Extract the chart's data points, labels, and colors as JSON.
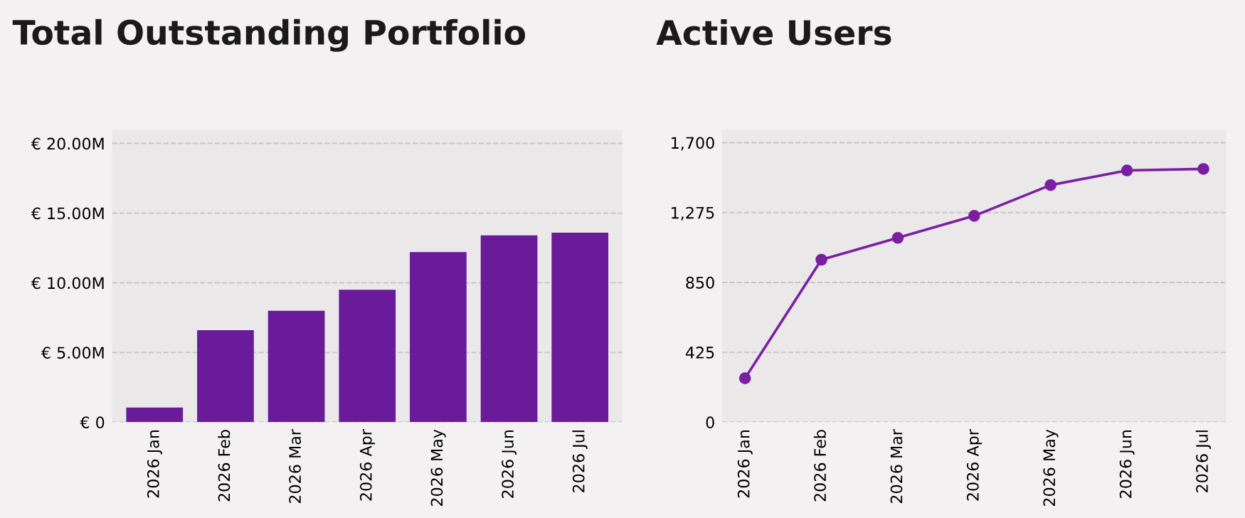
{
  "chart_data": [
    {
      "type": "bar",
      "title": "Total Outstanding Portfolio",
      "categories": [
        "2026 Jan",
        "2026 Feb",
        "2026 Mar",
        "2026 Apr",
        "2026 May",
        "2026 Jun",
        "2026 Jul"
      ],
      "values": [
        1.05,
        6.6,
        8.0,
        9.5,
        12.2,
        13.4,
        13.6
      ],
      "color": "#6a1b9a",
      "ylim": [
        0,
        21
      ],
      "yticks": [
        {
          "value": 0,
          "label": "€ 0"
        },
        {
          "value": 5,
          "label": "€ 5.00M"
        },
        {
          "value": 10,
          "label": "€ 10.00M"
        },
        {
          "value": 15,
          "label": "€ 15.00M"
        },
        {
          "value": 20,
          "label": "€ 20.00M"
        }
      ],
      "grid": "y"
    },
    {
      "type": "line",
      "title": "Active Users",
      "categories": [
        "2026 Jan",
        "2026 Feb",
        "2026 Mar",
        "2026 Apr",
        "2026 May",
        "2026 Jun",
        "2026 Jul"
      ],
      "values": [
        267,
        988,
        1121,
        1255,
        1442,
        1531,
        1540
      ],
      "color": "#7b1fa2",
      "marker": "circle",
      "line_style": "solid",
      "ylim": [
        0,
        1780
      ],
      "yticks": [
        0,
        425,
        850,
        {
          "value": 1275,
          "label": "1,275"
        },
        {
          "value": 1700,
          "label": "1,700"
        }
      ],
      "grid": "y"
    }
  ]
}
